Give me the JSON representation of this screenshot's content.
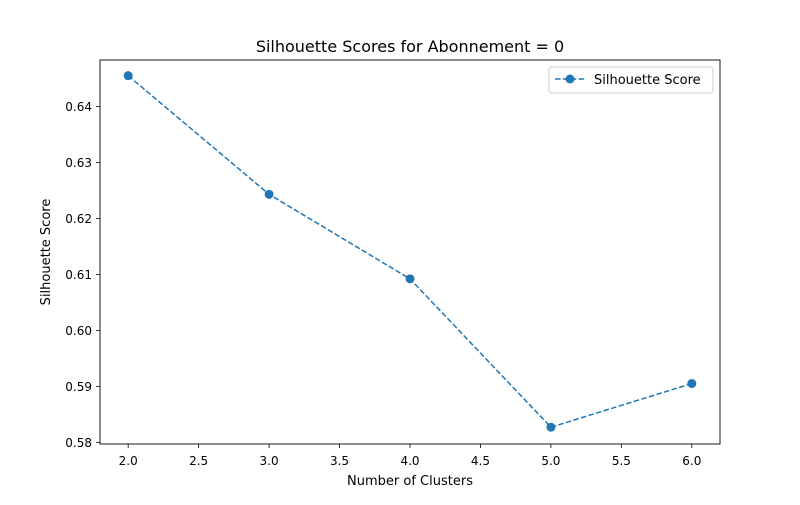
{
  "chart_data": {
    "type": "line",
    "title": "Silhouette Scores for Abonnement = 0",
    "xlabel": "Number of Clusters",
    "ylabel": "Silhouette Score",
    "xlim": [
      1.8,
      6.2
    ],
    "ylim": [
      0.5797,
      0.6483
    ],
    "xticks": [
      "2.0",
      "2.5",
      "3.0",
      "3.5",
      "4.0",
      "4.5",
      "5.0",
      "5.5",
      "6.0"
    ],
    "yticks": [
      "0.58",
      "0.59",
      "0.60",
      "0.61",
      "0.62",
      "0.63",
      "0.64"
    ],
    "grid": false,
    "legend_position": "top-right",
    "series": [
      {
        "name": "Silhouette Score",
        "color": "#1f77b4",
        "line_style": "dashed",
        "marker": "circle",
        "x": [
          2,
          3,
          4,
          5,
          6
        ],
        "y": [
          0.6455,
          0.6243,
          0.6092,
          0.5827,
          0.5905
        ]
      }
    ]
  }
}
